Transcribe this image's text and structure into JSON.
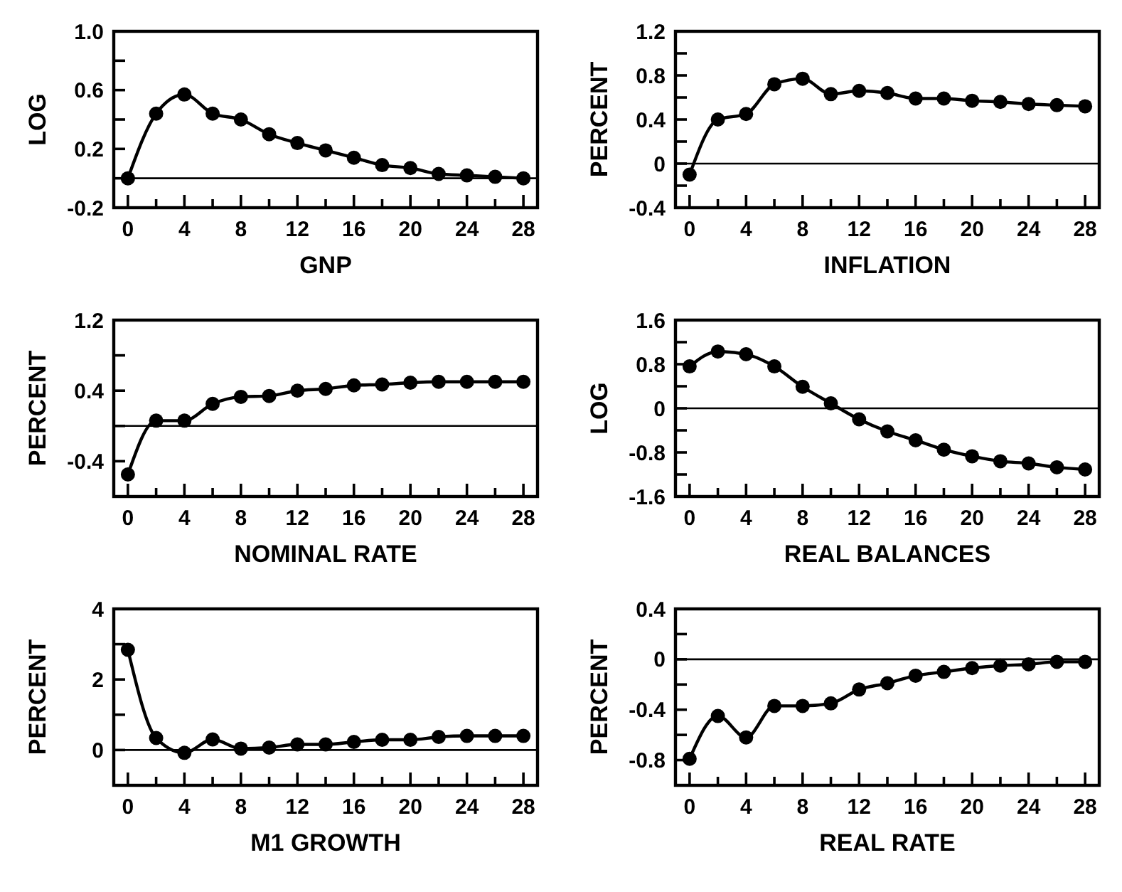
{
  "chart_data": [
    {
      "type": "line",
      "xlabel": "GNP",
      "ylabel": "LOG",
      "x": [
        0,
        2,
        4,
        6,
        8,
        10,
        12,
        14,
        16,
        18,
        20,
        22,
        24,
        26,
        28
      ],
      "series": [
        {
          "color": "#000000",
          "values": [
            0.0,
            0.44,
            0.57,
            0.44,
            0.4,
            0.3,
            0.24,
            0.19,
            0.14,
            0.09,
            0.07,
            0.03,
            0.02,
            0.01,
            0.0
          ]
        }
      ],
      "xlim": [
        -1,
        29
      ],
      "xticks": [
        0,
        {
          "value": 2,
          "label": null
        },
        4,
        {
          "value": 6,
          "label": null
        },
        8,
        {
          "value": 10,
          "label": null
        },
        12,
        {
          "value": 14,
          "label": null
        },
        16,
        {
          "value": 18,
          "label": null
        },
        20,
        {
          "value": 22,
          "label": null
        },
        24,
        {
          "value": 26,
          "label": null
        },
        28
      ],
      "ylim": [
        -0.2,
        1.0
      ],
      "yticks": [
        {
          "value": -0.2,
          "label": "-0.2"
        },
        {
          "value": 0,
          "label": null
        },
        {
          "value": 0.2,
          "label": "0.2"
        },
        {
          "value": 0.4,
          "label": null
        },
        {
          "value": 0.6,
          "label": "0.6"
        },
        {
          "value": 0.8,
          "label": null
        },
        {
          "value": 1.0,
          "label": "1.0"
        }
      ],
      "ref_lines": [
        {
          "axis": "y",
          "value": 0,
          "color": "#000000"
        }
      ],
      "marker": "circle",
      "line_style": "solid"
    },
    {
      "type": "line",
      "xlabel": "INFLATION",
      "ylabel": "PERCENT",
      "x": [
        0,
        2,
        4,
        6,
        8,
        10,
        12,
        14,
        16,
        18,
        20,
        22,
        24,
        26,
        28
      ],
      "series": [
        {
          "color": "#000000",
          "values": [
            -0.1,
            0.4,
            0.45,
            0.72,
            0.77,
            0.63,
            0.66,
            0.64,
            0.59,
            0.59,
            0.57,
            0.56,
            0.54,
            0.53,
            0.52
          ]
        }
      ],
      "xlim": [
        -1,
        29
      ],
      "xticks": [
        0,
        {
          "value": 2,
          "label": null
        },
        4,
        {
          "value": 6,
          "label": null
        },
        8,
        {
          "value": 10,
          "label": null
        },
        12,
        {
          "value": 14,
          "label": null
        },
        16,
        {
          "value": 18,
          "label": null
        },
        20,
        {
          "value": 22,
          "label": null
        },
        24,
        {
          "value": 26,
          "label": null
        },
        28
      ],
      "ylim": [
        -0.4,
        1.2
      ],
      "yticks": [
        {
          "value": -0.4,
          "label": "-0.4"
        },
        {
          "value": -0.2,
          "label": null
        },
        0,
        {
          "value": 0.2,
          "label": null
        },
        {
          "value": 0.4,
          "label": "0.4"
        },
        {
          "value": 0.6,
          "label": null
        },
        {
          "value": 0.8,
          "label": "0.8"
        },
        {
          "value": 1.0,
          "label": null
        },
        {
          "value": 1.2,
          "label": "1.2"
        }
      ],
      "ref_lines": [
        {
          "axis": "y",
          "value": 0,
          "color": "#000000"
        }
      ],
      "marker": "circle",
      "line_style": "solid"
    },
    {
      "type": "line",
      "xlabel": "NOMINAL RATE",
      "ylabel": "PERCENT",
      "x": [
        0,
        2,
        4,
        6,
        8,
        10,
        12,
        14,
        16,
        18,
        20,
        22,
        24,
        26,
        28
      ],
      "series": [
        {
          "color": "#000000",
          "values": [
            -0.55,
            0.06,
            0.06,
            0.25,
            0.33,
            0.34,
            0.4,
            0.42,
            0.46,
            0.47,
            0.49,
            0.5,
            0.5,
            0.5,
            0.5
          ]
        }
      ],
      "xlim": [
        -1,
        29
      ],
      "xticks": [
        0,
        {
          "value": 2,
          "label": null
        },
        4,
        {
          "value": 6,
          "label": null
        },
        8,
        {
          "value": 10,
          "label": null
        },
        12,
        {
          "value": 14,
          "label": null
        },
        16,
        {
          "value": 18,
          "label": null
        },
        20,
        {
          "value": 22,
          "label": null
        },
        24,
        {
          "value": 26,
          "label": null
        },
        28
      ],
      "ylim": [
        -0.8,
        1.2
      ],
      "yticks": [
        {
          "value": -0.8,
          "label": null
        },
        {
          "value": -0.4,
          "label": "-0.4"
        },
        {
          "value": 0,
          "label": null
        },
        {
          "value": 0.4,
          "label": "0.4"
        },
        {
          "value": 0.8,
          "label": null
        },
        {
          "value": 1.2,
          "label": "1.2"
        }
      ],
      "ref_lines": [
        {
          "axis": "y",
          "value": 0,
          "color": "#000000"
        }
      ],
      "marker": "circle",
      "line_style": "solid"
    },
    {
      "type": "line",
      "xlabel": "REAL BALANCES",
      "ylabel": "LOG",
      "x": [
        0,
        2,
        4,
        6,
        8,
        10,
        12,
        14,
        16,
        18,
        20,
        22,
        24,
        26,
        28
      ],
      "series": [
        {
          "color": "#000000",
          "values": [
            0.76,
            1.03,
            0.98,
            0.76,
            0.39,
            0.09,
            -0.2,
            -0.42,
            -0.58,
            -0.75,
            -0.87,
            -0.96,
            -1.0,
            -1.07,
            -1.11
          ]
        }
      ],
      "xlim": [
        -1,
        29
      ],
      "xticks": [
        0,
        {
          "value": 2,
          "label": null
        },
        4,
        {
          "value": 6,
          "label": null
        },
        8,
        {
          "value": 10,
          "label": null
        },
        12,
        {
          "value": 14,
          "label": null
        },
        16,
        {
          "value": 18,
          "label": null
        },
        20,
        {
          "value": 22,
          "label": null
        },
        24,
        {
          "value": 26,
          "label": null
        },
        28
      ],
      "ylim": [
        -1.6,
        1.6
      ],
      "yticks": [
        {
          "value": -1.6,
          "label": "-1.6"
        },
        {
          "value": -1.2,
          "label": null
        },
        {
          "value": -0.8,
          "label": "-0.8"
        },
        {
          "value": -0.4,
          "label": null
        },
        0,
        {
          "value": 0.4,
          "label": null
        },
        {
          "value": 0.8,
          "label": "0.8"
        },
        {
          "value": 1.2,
          "label": null
        },
        {
          "value": 1.6,
          "label": "1.6"
        }
      ],
      "ref_lines": [
        {
          "axis": "y",
          "value": 0,
          "color": "#000000"
        }
      ],
      "marker": "circle",
      "line_style": "solid"
    },
    {
      "type": "line",
      "xlabel": "M1 GROWTH",
      "ylabel": "PERCENT",
      "x": [
        0,
        2,
        4,
        6,
        8,
        10,
        12,
        14,
        16,
        18,
        20,
        22,
        24,
        26,
        28
      ],
      "series": [
        {
          "color": "#000000",
          "values": [
            2.84,
            0.34,
            -0.08,
            0.3,
            0.04,
            0.07,
            0.16,
            0.16,
            0.23,
            0.29,
            0.29,
            0.37,
            0.4,
            0.4,
            0.4
          ]
        }
      ],
      "xlim": [
        -1,
        29
      ],
      "xticks": [
        0,
        {
          "value": 2,
          "label": null
        },
        4,
        {
          "value": 6,
          "label": null
        },
        8,
        {
          "value": 10,
          "label": null
        },
        12,
        {
          "value": 14,
          "label": null
        },
        16,
        {
          "value": 18,
          "label": null
        },
        20,
        {
          "value": 22,
          "label": null
        },
        24,
        {
          "value": 26,
          "label": null
        },
        28
      ],
      "ylim": [
        -1,
        4
      ],
      "yticks": [
        {
          "value": -1,
          "label": null
        },
        0,
        {
          "value": 1,
          "label": null
        },
        2,
        {
          "value": 3,
          "label": null
        },
        4
      ],
      "ref_lines": [
        {
          "axis": "y",
          "value": 0,
          "color": "#000000"
        }
      ],
      "marker": "circle",
      "line_style": "solid"
    },
    {
      "type": "line",
      "xlabel": "REAL RATE",
      "ylabel": "PERCENT",
      "x": [
        0,
        2,
        4,
        6,
        8,
        10,
        12,
        14,
        16,
        18,
        20,
        22,
        24,
        26,
        28
      ],
      "series": [
        {
          "color": "#000000",
          "values": [
            -0.79,
            -0.45,
            -0.62,
            -0.37,
            -0.37,
            -0.35,
            -0.24,
            -0.19,
            -0.13,
            -0.1,
            -0.07,
            -0.05,
            -0.04,
            -0.02,
            -0.02
          ]
        }
      ],
      "xlim": [
        -1,
        29
      ],
      "xticks": [
        0,
        {
          "value": 2,
          "label": null
        },
        4,
        {
          "value": 6,
          "label": null
        },
        8,
        {
          "value": 10,
          "label": null
        },
        12,
        {
          "value": 14,
          "label": null
        },
        16,
        {
          "value": 18,
          "label": null
        },
        20,
        {
          "value": 22,
          "label": null
        },
        24,
        {
          "value": 26,
          "label": null
        },
        28
      ],
      "ylim": [
        -1.0,
        0.4
      ],
      "yticks": [
        {
          "value": -1.0,
          "label": null
        },
        {
          "value": -0.8,
          "label": "-0.8"
        },
        {
          "value": -0.6,
          "label": null
        },
        {
          "value": -0.4,
          "label": "-0.4"
        },
        {
          "value": -0.2,
          "label": null
        },
        0,
        {
          "value": 0.2,
          "label": null
        },
        {
          "value": 0.4,
          "label": "0.4"
        }
      ],
      "ref_lines": [
        {
          "axis": "y",
          "value": 0,
          "color": "#000000"
        }
      ],
      "marker": "circle",
      "line_style": "solid"
    }
  ]
}
